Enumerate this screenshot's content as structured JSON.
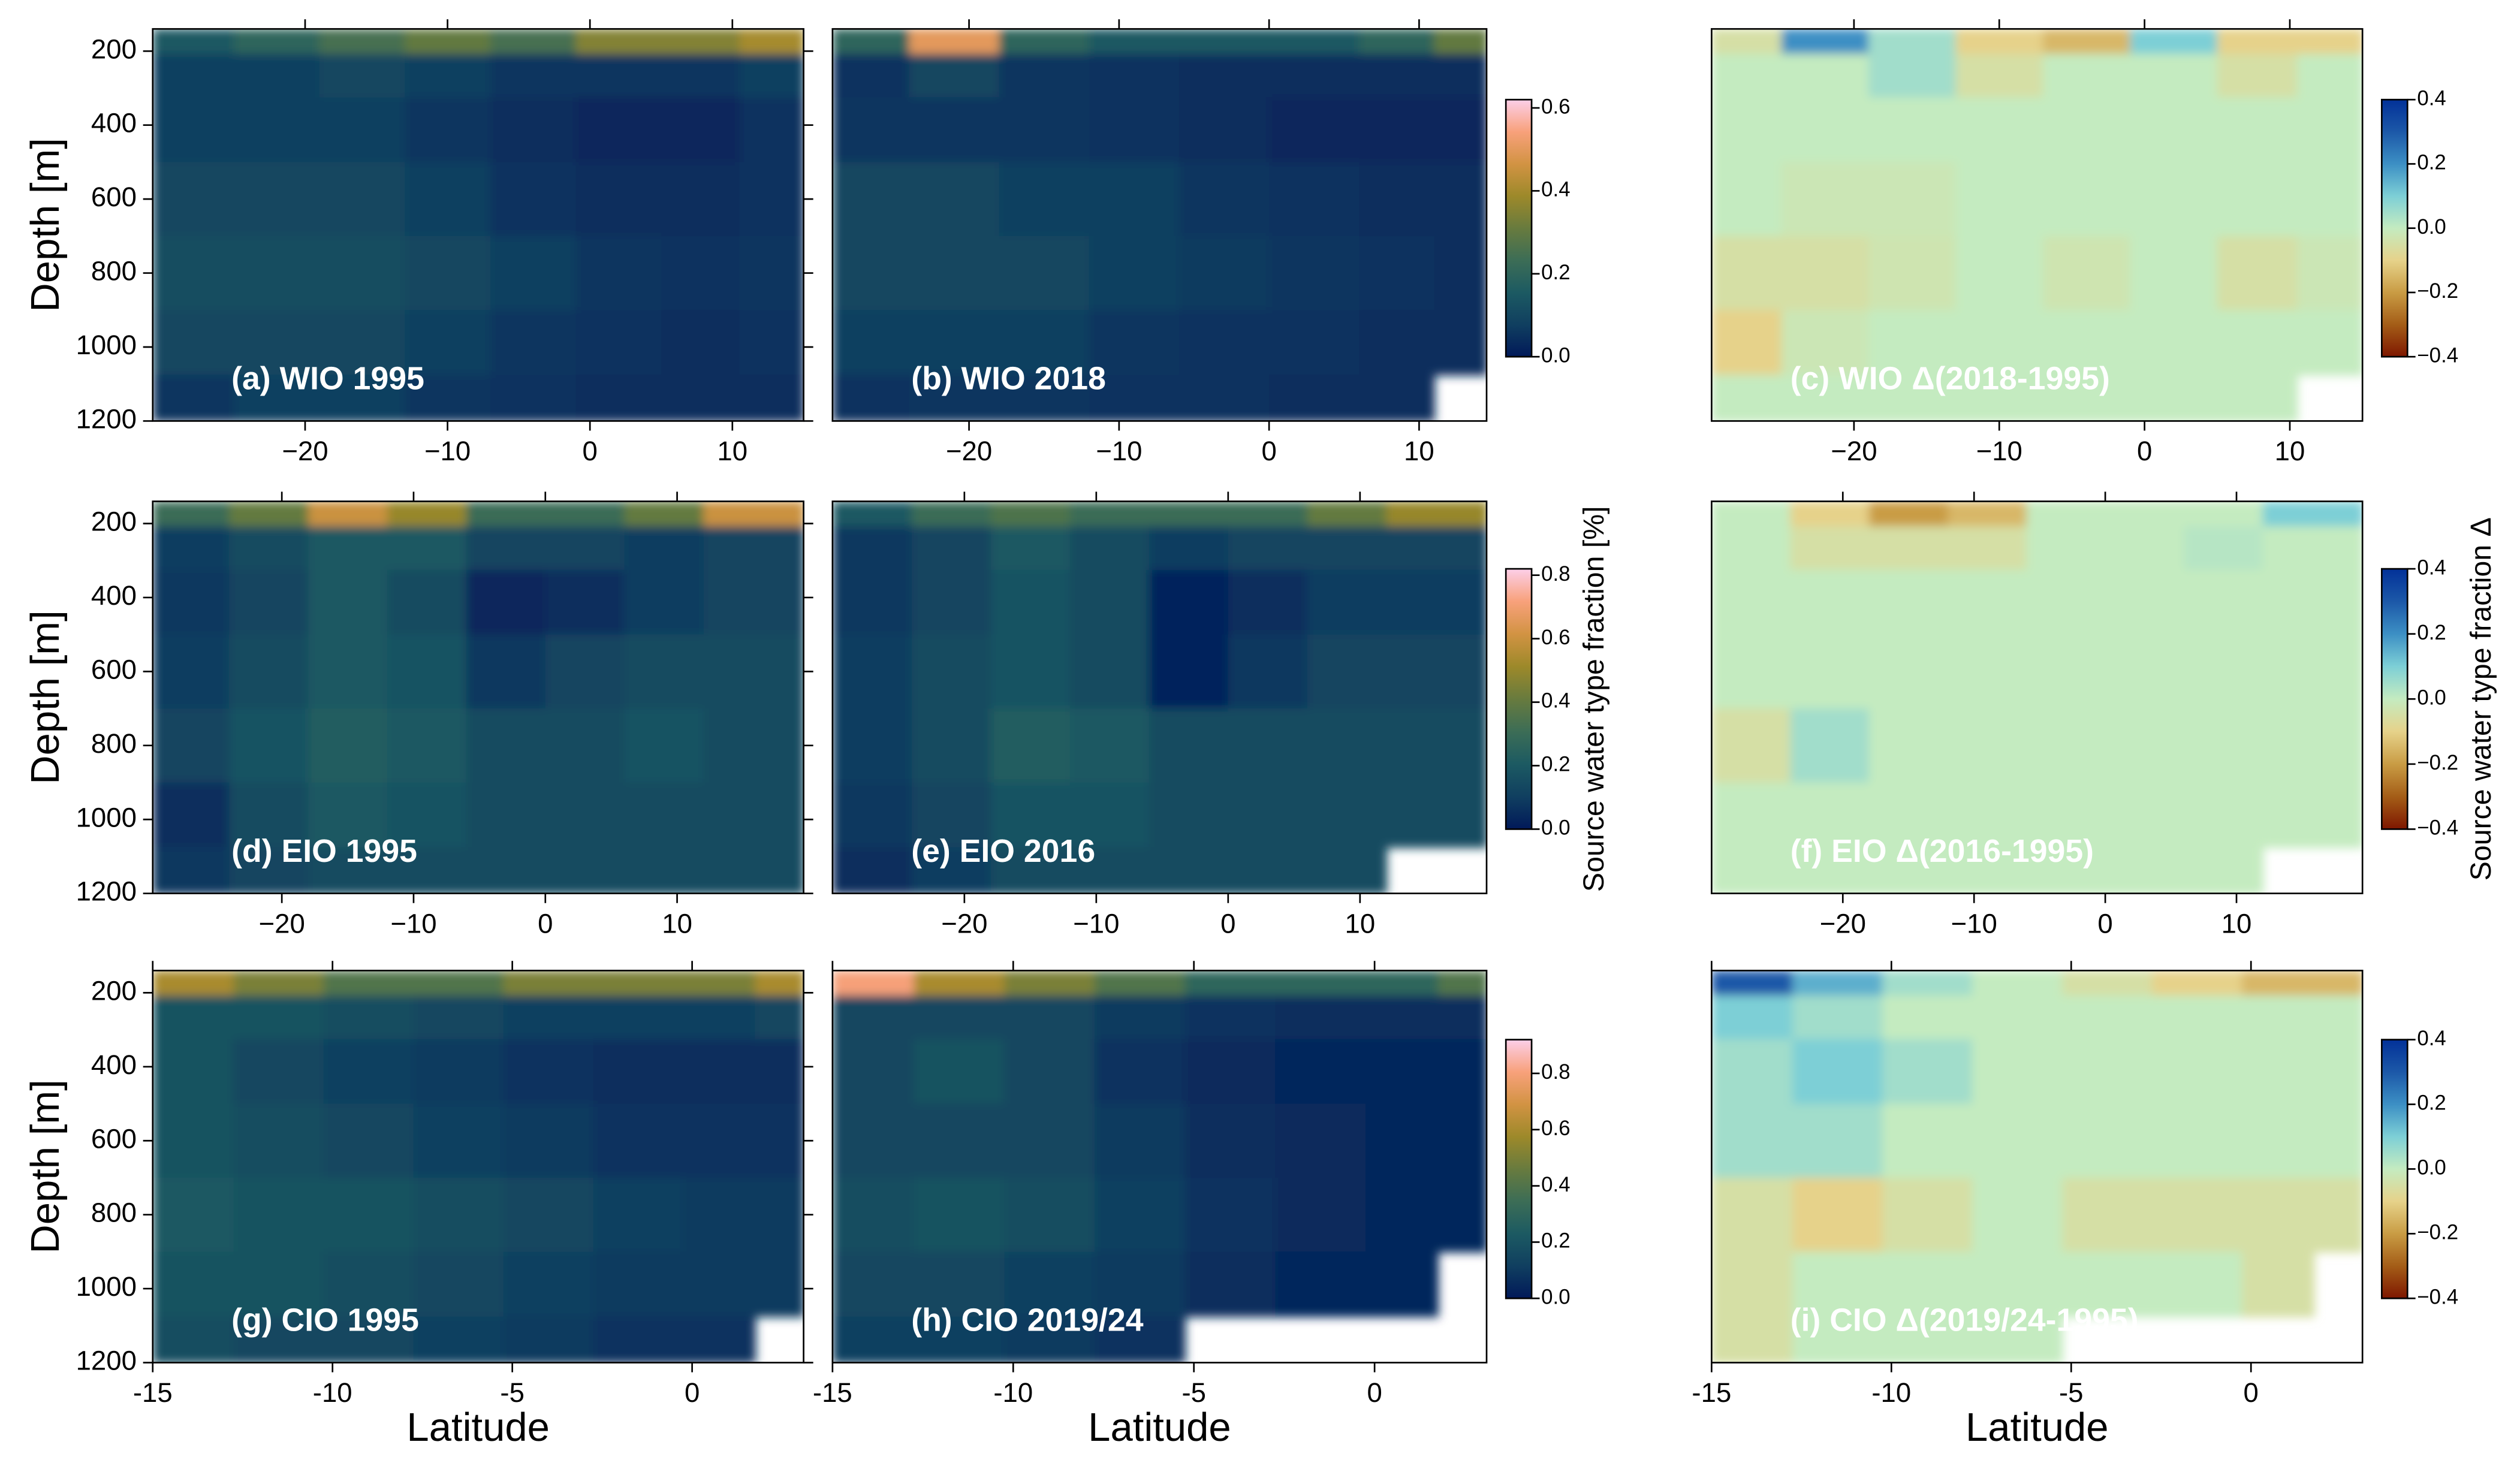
{
  "chart_data": [
    {
      "type": "heatmap",
      "title": "(a) WIO 1995",
      "ylabel": "Depth [m]",
      "x": [
        -28,
        -22,
        -16,
        -10,
        -4,
        2,
        8,
        13
      ],
      "y": [
        165,
        250,
        400,
        600,
        800,
        1000,
        1150
      ],
      "values": [
        [
          0.15,
          0.2,
          0.25,
          0.3,
          0.25,
          0.35,
          0.35,
          0.4
        ],
        [
          0.08,
          0.08,
          0.1,
          0.08,
          0.06,
          0.06,
          0.06,
          0.08
        ],
        [
          0.08,
          0.08,
          0.08,
          0.06,
          0.04,
          0.03,
          0.03,
          0.05
        ],
        [
          0.1,
          0.1,
          0.1,
          0.08,
          0.05,
          0.04,
          0.04,
          0.05
        ],
        [
          0.12,
          0.12,
          0.12,
          0.1,
          0.08,
          0.06,
          0.05,
          0.06
        ],
        [
          0.1,
          0.1,
          0.1,
          0.08,
          0.06,
          0.05,
          0.04,
          0.05
        ],
        [
          0.06,
          0.08,
          0.08,
          0.06,
          0.05,
          0.04,
          0.04,
          0.04
        ]
      ],
      "xlim": [
        -30.7,
        15
      ],
      "ylim": [
        1200,
        140
      ],
      "xticks": [
        {
          "value": -20,
          "label": "−20"
        },
        {
          "value": -10,
          "label": "−10"
        },
        0,
        10
      ],
      "yticks": [
        200,
        400,
        600,
        800,
        1000,
        1200
      ],
      "clim": [
        0,
        0.62
      ],
      "colormap": [
        "#011959",
        "#103f60",
        "#1c5a62",
        "#3c6d56",
        "#687b3e",
        "#9d892a",
        "#d29343",
        "#f8a17b",
        "#fccfe9"
      ]
    },
    {
      "type": "heatmap",
      "title": "(b) WIO 2018",
      "x": [
        -27,
        -21,
        -15,
        -9,
        -3,
        3,
        9,
        13
      ],
      "y": [
        165,
        250,
        400,
        600,
        800,
        1000,
        1150
      ],
      "values": [
        [
          0.2,
          0.5,
          0.2,
          0.15,
          0.15,
          0.15,
          0.2,
          0.3
        ],
        [
          0.05,
          0.1,
          0.06,
          0.05,
          0.04,
          0.04,
          0.04,
          0.04
        ],
        [
          0.06,
          0.06,
          0.06,
          0.05,
          0.04,
          0.03,
          0.03,
          0.03
        ],
        [
          0.1,
          0.1,
          0.08,
          0.08,
          0.06,
          0.05,
          0.04,
          0.04
        ],
        [
          0.1,
          0.1,
          0.1,
          0.08,
          0.07,
          0.06,
          0.05,
          0.04
        ],
        [
          0.08,
          0.08,
          0.08,
          0.06,
          0.05,
          0.05,
          0.04,
          0.04
        ],
        [
          0.05,
          0.06,
          0.06,
          0.05,
          0.05,
          0.04,
          0.04,
          null
        ]
      ],
      "xlim": [
        -29.1,
        14.5
      ],
      "ylim": [
        1200,
        140
      ],
      "xticks": [
        {
          "value": -20,
          "label": "−20"
        },
        {
          "value": -10,
          "label": "−10"
        },
        0,
        10
      ],
      "clim": [
        0,
        0.62
      ],
      "colormap": [
        "#011959",
        "#103f60",
        "#1c5a62",
        "#3c6d56",
        "#687b3e",
        "#9d892a",
        "#d29343",
        "#f8a17b",
        "#fccfe9"
      ],
      "colorbar_ticks": [
        {
          "value": 0,
          "label": "0.0"
        },
        0.2,
        0.4,
        0.6
      ]
    },
    {
      "type": "heatmap",
      "title": "(c) WIO Δ(2018-1995)",
      "x": [
        -28,
        -22,
        -16,
        -10,
        -4,
        2,
        8,
        13
      ],
      "y": [
        165,
        250,
        400,
        600,
        800,
        1000,
        1150
      ],
      "values": [
        [
          -0.05,
          0.2,
          0.05,
          -0.1,
          -0.15,
          0.1,
          -0.1,
          -0.1
        ],
        [
          0,
          0,
          0.05,
          -0.05,
          0,
          0,
          -0.05,
          0
        ],
        [
          0,
          0,
          0,
          0,
          0,
          0,
          0,
          0
        ],
        [
          0,
          -0.02,
          -0.02,
          0,
          0,
          0,
          0,
          0
        ],
        [
          -0.05,
          -0.05,
          -0.03,
          0,
          -0.03,
          0,
          -0.05,
          -0.02
        ],
        [
          -0.1,
          -0.02,
          0,
          0,
          0,
          0,
          0,
          0
        ],
        [
          0,
          0,
          0,
          0,
          0,
          0,
          0,
          null
        ]
      ],
      "xlim": [
        -29.8,
        15
      ],
      "ylim": [
        1200,
        140
      ],
      "xticks": [
        {
          "value": -20,
          "label": "−20"
        },
        {
          "value": -10,
          "label": "−10"
        },
        0,
        10
      ],
      "clim": [
        -0.4,
        0.4
      ],
      "colormap": [
        "#7e1700",
        "#a45d17",
        "#c99c44",
        "#e6d28a",
        "#c4ebc0",
        "#7dcfd6",
        "#3c8fc4",
        "#1c58a8",
        "#023198"
      ],
      "colorbar_ticks": [
        {
          "value": -0.4,
          "label": "−0.4"
        },
        {
          "value": -0.2,
          "label": "−0.2"
        },
        {
          "value": 0,
          "label": "0.0"
        },
        0.2,
        0.4
      ]
    },
    {
      "type": "heatmap",
      "title": "(d) EIO 1995",
      "ylabel": "Depth [m]",
      "x": [
        -27,
        -21,
        -15,
        -9,
        -3,
        3,
        9,
        15
      ],
      "y": [
        165,
        250,
        400,
        600,
        800,
        1000,
        1150
      ],
      "values": [
        [
          0.3,
          0.4,
          0.6,
          0.5,
          0.3,
          0.3,
          0.4,
          0.6
        ],
        [
          0.1,
          0.15,
          0.2,
          0.2,
          0.12,
          0.12,
          0.1,
          0.12
        ],
        [
          0.08,
          0.12,
          0.2,
          0.15,
          0.04,
          0.06,
          0.1,
          0.12
        ],
        [
          0.1,
          0.15,
          0.2,
          0.18,
          0.08,
          0.12,
          0.15,
          0.15
        ],
        [
          0.12,
          0.18,
          0.22,
          0.2,
          0.15,
          0.15,
          0.18,
          0.15
        ],
        [
          0.06,
          0.15,
          0.2,
          0.18,
          0.15,
          0.15,
          0.15,
          0.15
        ],
        [
          0.08,
          0.12,
          0.15,
          0.15,
          0.15,
          0.15,
          0.15,
          0.15
        ]
      ],
      "xlim": [
        -29.8,
        19.6
      ],
      "ylim": [
        1200,
        140
      ],
      "xticks": [
        {
          "value": -20,
          "label": "−20"
        },
        {
          "value": -10,
          "label": "−10"
        },
        0,
        10
      ],
      "yticks": [
        200,
        400,
        600,
        800,
        1000,
        1200
      ],
      "clim": [
        0,
        0.82
      ],
      "colormap": [
        "#011959",
        "#103f60",
        "#1c5a62",
        "#3c6d56",
        "#687b3e",
        "#9d892a",
        "#d29343",
        "#f8a17b",
        "#fccfe9"
      ]
    },
    {
      "type": "heatmap",
      "title": "(e) EIO 2016",
      "x": [
        -27,
        -21,
        -15,
        -9,
        -3,
        3,
        9,
        15
      ],
      "y": [
        165,
        250,
        400,
        600,
        800,
        1000,
        1150
      ],
      "values": [
        [
          0.2,
          0.3,
          0.35,
          0.3,
          0.3,
          0.3,
          0.4,
          0.5
        ],
        [
          0.08,
          0.12,
          0.2,
          0.15,
          0.1,
          0.12,
          0.12,
          0.12
        ],
        [
          0.08,
          0.12,
          0.18,
          0.15,
          0.03,
          0.06,
          0.1,
          0.1
        ],
        [
          0.1,
          0.15,
          0.18,
          0.15,
          0.03,
          0.08,
          0.12,
          0.12
        ],
        [
          0.1,
          0.15,
          0.22,
          0.2,
          0.15,
          0.15,
          0.15,
          0.15
        ],
        [
          0.08,
          0.12,
          0.18,
          0.18,
          0.15,
          0.15,
          0.15,
          0.15
        ],
        [
          0.06,
          0.1,
          0.15,
          0.15,
          0.15,
          0.15,
          0.15,
          null
        ]
      ],
      "xlim": [
        -30,
        19.6
      ],
      "ylim": [
        1200,
        140
      ],
      "xticks": [
        {
          "value": -20,
          "label": "−20"
        },
        {
          "value": -10,
          "label": "−10"
        },
        0,
        10
      ],
      "clim": [
        0,
        0.82
      ],
      "colormap": [
        "#011959",
        "#103f60",
        "#1c5a62",
        "#3c6d56",
        "#687b3e",
        "#9d892a",
        "#d29343",
        "#f8a17b",
        "#fccfe9"
      ],
      "colorbar_ticks": [
        {
          "value": 0,
          "label": "0.0"
        },
        0.2,
        0.4,
        0.6,
        0.8
      ],
      "colorbar_label": "Source water type fraction [%]"
    },
    {
      "type": "heatmap",
      "title": "(f) EIO Δ(2016-1995)",
      "x": [
        -27,
        -21,
        -15,
        -9,
        -3,
        3,
        9,
        15
      ],
      "y": [
        165,
        250,
        400,
        600,
        800,
        1000,
        1150
      ],
      "values": [
        [
          0,
          -0.1,
          -0.2,
          -0.15,
          0,
          0,
          0,
          0.1
        ],
        [
          0,
          -0.05,
          -0.05,
          -0.05,
          0,
          0,
          0.02,
          0
        ],
        [
          0,
          0,
          0,
          0,
          0,
          0,
          0,
          0
        ],
        [
          0,
          0,
          0,
          0,
          0,
          0,
          0,
          0
        ],
        [
          -0.05,
          0.05,
          0,
          0,
          0,
          0,
          0,
          0
        ],
        [
          0,
          0,
          0,
          0,
          0,
          0,
          0,
          0
        ],
        [
          0,
          0,
          0,
          0,
          0,
          0,
          0,
          null
        ]
      ],
      "xlim": [
        -30,
        19.6
      ],
      "ylim": [
        1200,
        140
      ],
      "xticks": [
        {
          "value": -20,
          "label": "−20"
        },
        {
          "value": -10,
          "label": "−10"
        },
        0,
        10
      ],
      "clim": [
        -0.4,
        0.4
      ],
      "colormap": [
        "#7e1700",
        "#a45d17",
        "#c99c44",
        "#e6d28a",
        "#c4ebc0",
        "#7dcfd6",
        "#3c8fc4",
        "#1c58a8",
        "#023198"
      ],
      "colorbar_ticks": [
        {
          "value": -0.4,
          "label": "−0.4"
        },
        {
          "value": -0.2,
          "label": "−0.2"
        },
        {
          "value": 0,
          "label": "0.0"
        },
        0.2,
        0.4
      ],
      "colorbar_label": "Source water type fraction Δ"
    },
    {
      "type": "heatmap",
      "title": "(g) CIO 1995",
      "ylabel": "Depth [m]",
      "xlabel": "Latitude",
      "x": [
        -14,
        -11.5,
        -9,
        -6.5,
        -4,
        -1.5,
        1,
        2.5
      ],
      "y": [
        165,
        250,
        400,
        600,
        800,
        1000,
        1150
      ],
      "values": [
        [
          0.6,
          0.5,
          0.4,
          0.4,
          0.5,
          0.5,
          0.5,
          0.6
        ],
        [
          0.2,
          0.2,
          0.18,
          0.15,
          0.12,
          0.12,
          0.12,
          0.15
        ],
        [
          0.2,
          0.15,
          0.12,
          0.1,
          0.08,
          0.06,
          0.06,
          0.06
        ],
        [
          0.2,
          0.18,
          0.15,
          0.12,
          0.1,
          0.08,
          0.08,
          0.08
        ],
        [
          0.22,
          0.2,
          0.2,
          0.18,
          0.15,
          0.12,
          0.1,
          0.1
        ],
        [
          0.2,
          0.2,
          0.18,
          0.15,
          0.12,
          0.1,
          0.1,
          0.1
        ],
        [
          0.18,
          0.15,
          0.15,
          0.12,
          0.1,
          0.08,
          0.08,
          null
        ]
      ],
      "xlim": [
        -15,
        3.1
      ],
      "ylim": [
        1200,
        140
      ],
      "xticks": [
        -15,
        -10,
        -5,
        0
      ],
      "yticks": [
        200,
        400,
        600,
        800,
        1000,
        1200
      ],
      "clim": [
        0,
        0.92
      ],
      "colormap": [
        "#011959",
        "#103f60",
        "#1c5a62",
        "#3c6d56",
        "#687b3e",
        "#9d892a",
        "#d29343",
        "#f8a17b",
        "#fccfe9"
      ]
    },
    {
      "type": "heatmap",
      "title": "(h) CIO 2019/24",
      "xlabel": "Latitude",
      "x": [
        -14,
        -11.5,
        -9,
        -6.5,
        -4,
        -1.5,
        1,
        2.5
      ],
      "y": [
        165,
        250,
        400,
        600,
        800,
        1000,
        1150
      ],
      "values": [
        [
          0.8,
          0.6,
          0.5,
          0.4,
          0.3,
          0.3,
          0.3,
          0.4
        ],
        [
          0.15,
          0.15,
          0.15,
          0.1,
          0.08,
          0.06,
          0.06,
          0.06
        ],
        [
          0.15,
          0.2,
          0.15,
          0.08,
          0.05,
          0.04,
          0.04,
          0.04
        ],
        [
          0.15,
          0.15,
          0.15,
          0.1,
          0.06,
          0.05,
          0.04,
          0.04
        ],
        [
          0.18,
          0.2,
          0.18,
          0.12,
          0.08,
          0.05,
          0.04,
          0.04
        ],
        [
          0.15,
          0.15,
          0.12,
          0.1,
          0.06,
          0.04,
          0.04,
          null
        ],
        [
          0.12,
          0.12,
          0.1,
          0.08,
          null,
          null,
          null,
          null
        ]
      ],
      "xlim": [
        -15,
        3.1
      ],
      "ylim": [
        1200,
        140
      ],
      "xticks": [
        -15,
        -10,
        -5,
        0
      ],
      "clim": [
        0,
        0.92
      ],
      "colormap": [
        "#011959",
        "#103f60",
        "#1c5a62",
        "#3c6d56",
        "#687b3e",
        "#9d892a",
        "#d29343",
        "#f8a17b",
        "#fccfe9"
      ],
      "colorbar_ticks": [
        {
          "value": 0,
          "label": "0.0"
        },
        0.2,
        0.4,
        0.6,
        0.8
      ]
    },
    {
      "type": "heatmap",
      "title": "(i) CIO Δ(2019/24-1995)",
      "xlabel": "Latitude",
      "x": [
        -14,
        -11.5,
        -9,
        -6.5,
        -4,
        -1.5,
        1,
        2.5
      ],
      "y": [
        165,
        250,
        400,
        600,
        800,
        1000,
        1150
      ],
      "values": [
        [
          0.3,
          0.15,
          0.05,
          0,
          -0.05,
          -0.1,
          -0.15,
          -0.15
        ],
        [
          0.1,
          0.05,
          0,
          0,
          0,
          0,
          0,
          0
        ],
        [
          0.05,
          0.1,
          0.05,
          0,
          0,
          0,
          0,
          0
        ],
        [
          0.05,
          0.05,
          0,
          0,
          0,
          0,
          0,
          0
        ],
        [
          -0.05,
          -0.1,
          -0.05,
          0,
          -0.05,
          -0.05,
          -0.05,
          -0.05
        ],
        [
          -0.05,
          0,
          0,
          0,
          0,
          0,
          -0.05,
          null
        ],
        [
          -0.05,
          0,
          0,
          0,
          null,
          null,
          null,
          null
        ]
      ],
      "xlim": [
        -15,
        3.1
      ],
      "ylim": [
        1200,
        140
      ],
      "xticks": [
        -15,
        -10,
        -5,
        0
      ],
      "clim": [
        -0.4,
        0.4
      ],
      "colormap": [
        "#7e1700",
        "#a45d17",
        "#c99c44",
        "#e6d28a",
        "#c4ebc0",
        "#7dcfd6",
        "#3c8fc4",
        "#1c58a8",
        "#023198"
      ],
      "colorbar_ticks": [
        {
          "value": -0.4,
          "label": "−0.4"
        },
        {
          "value": -0.2,
          "label": "−0.2"
        },
        {
          "value": 0,
          "label": "0.0"
        },
        0.2,
        0.4
      ]
    }
  ]
}
